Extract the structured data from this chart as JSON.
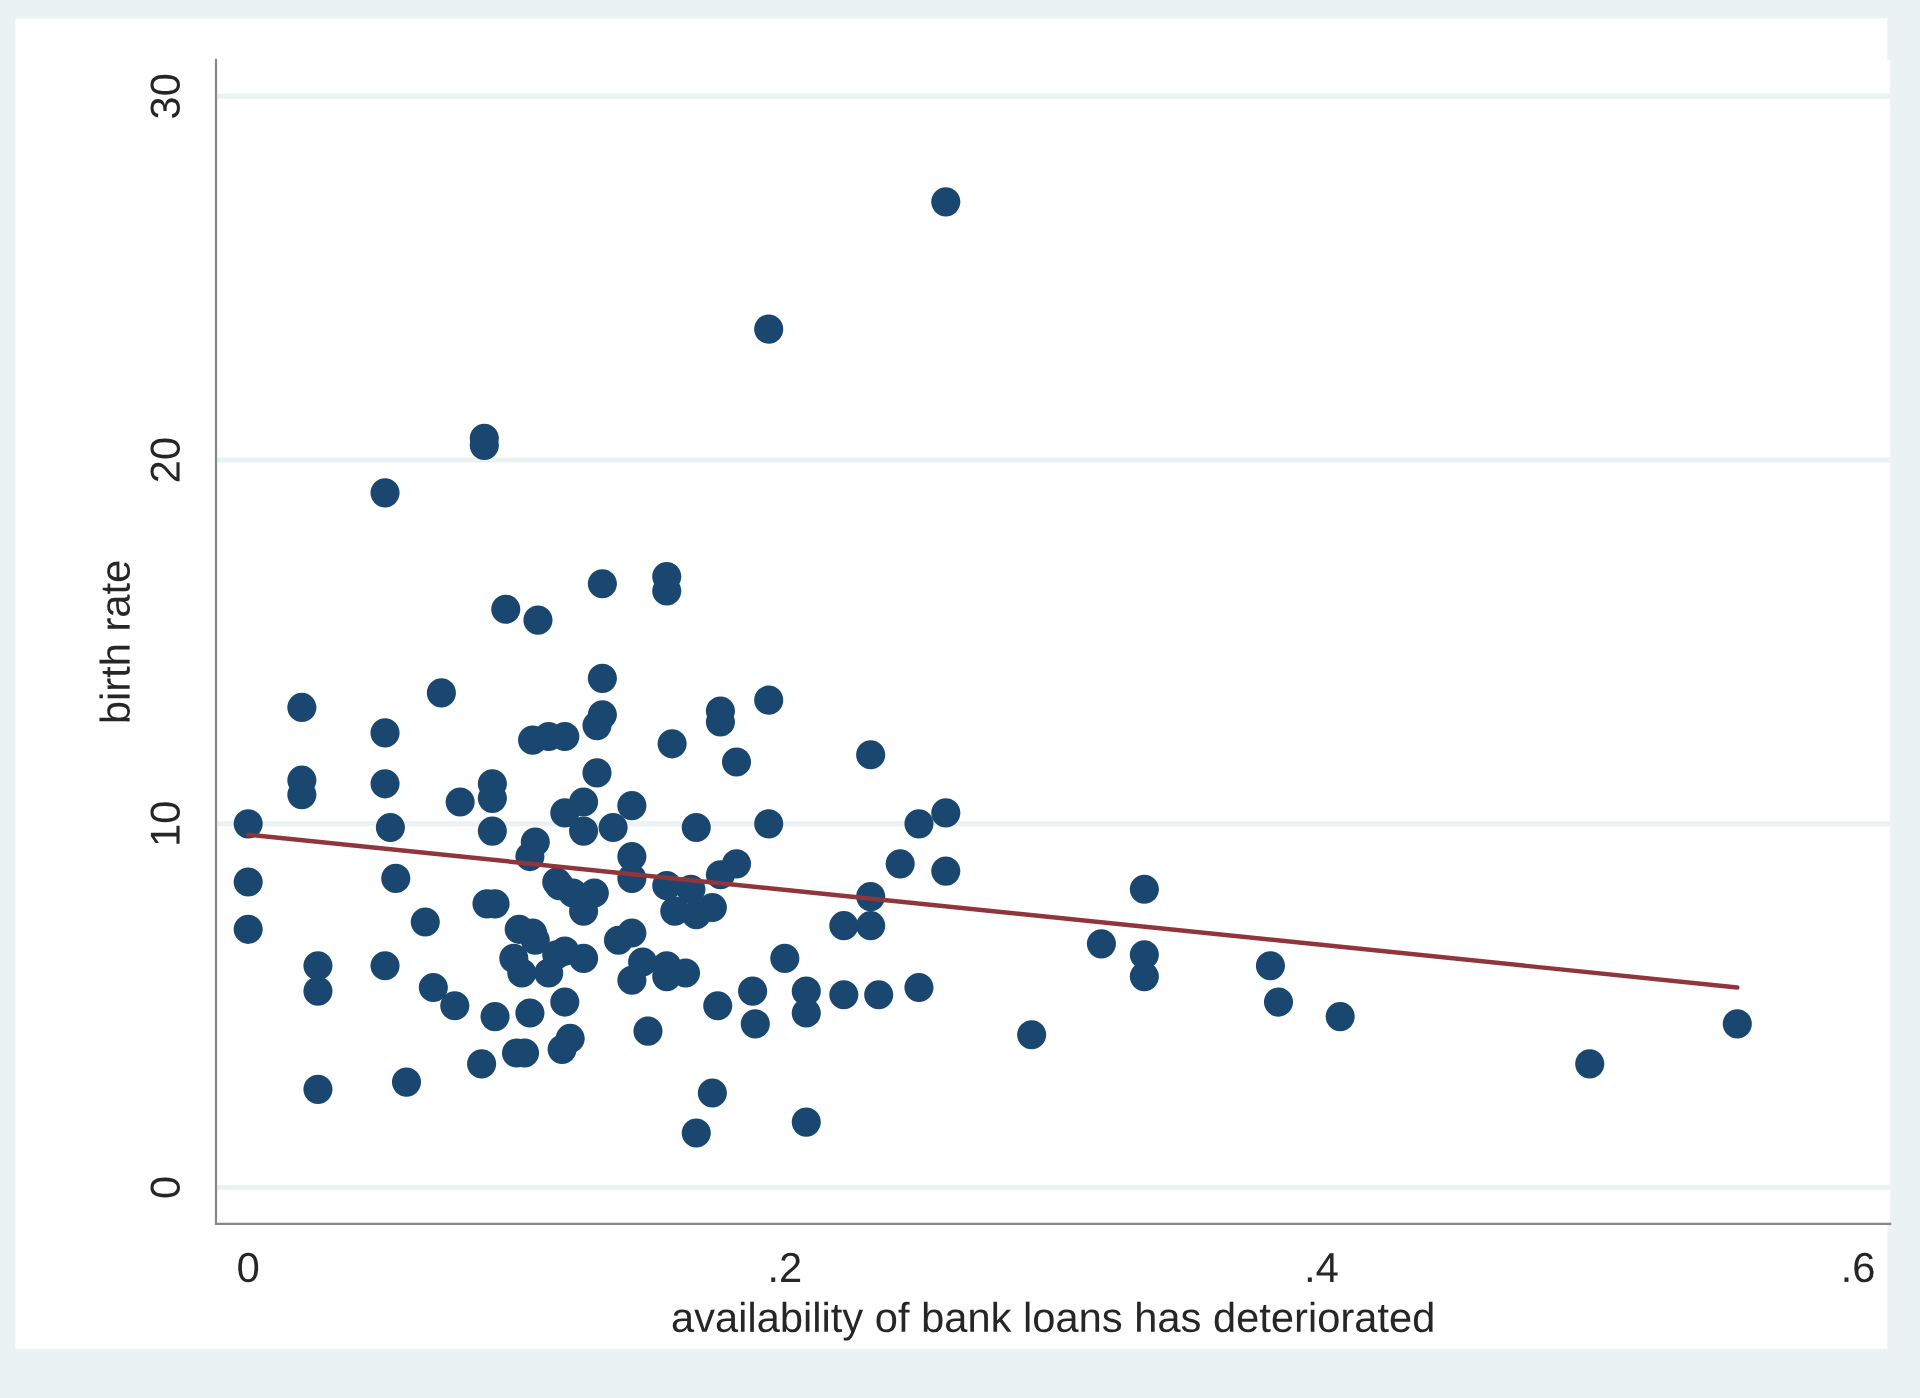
{
  "chart_data": {
    "type": "scatter",
    "xlabel": "availability of bank loans has deteriorated",
    "ylabel": "birth rate",
    "xlim": [
      -0.012,
      0.612
    ],
    "xticks": [
      {
        "value": 0,
        "label": "0"
      },
      {
        "value": 0.2,
        "label": ".2"
      },
      {
        "value": 0.4,
        "label": ".4"
      },
      {
        "value": 0.6,
        "label": ".6"
      }
    ],
    "ylim": [
      -1,
      31
    ],
    "yticks": [
      0,
      10,
      20,
      30
    ],
    "grid": "y",
    "series": [
      {
        "marker": "circle",
        "color": "#1a476f",
        "x": [
          0.096,
          0.108,
          0.02,
          0.072,
          0.051,
          0.106,
          0.112,
          0.118,
          0.02,
          0.02,
          0.051,
          0.091,
          0.091,
          0.079,
          0.118,
          0,
          0.053,
          0.091,
          0.107,
          0.105,
          0,
          0.055,
          0.115,
          0,
          0.089,
          0.092,
          0.066,
          0.101,
          0.106,
          0.107,
          0.115,
          0.026,
          0.051,
          0.099,
          0.102,
          0.112,
          0.026,
          0.069,
          0.077,
          0.092,
          0.105,
          0.118,
          0.087,
          0.1,
          0.103,
          0.117,
          0.12,
          0.026,
          0.059,
          0.088,
          0.088,
          0.051,
          0.132,
          0.156,
          0.156,
          0.194,
          0.26,
          0.132,
          0.132,
          0.13,
          0.158,
          0.176,
          0.176,
          0.194,
          0.182,
          0.232,
          0.13,
          0.125,
          0.143,
          0.125,
          0.136,
          0.167,
          0.194,
          0.25,
          0.143,
          0.182,
          0.176,
          0.243,
          0.232,
          0.143,
          0.116,
          0.121,
          0.129,
          0.125,
          0.156,
          0.165,
          0.159,
          0.167,
          0.173,
          0.222,
          0.232,
          0.118,
          0.125,
          0.138,
          0.143,
          0.147,
          0.156,
          0.163,
          0.156,
          0.143,
          0.2,
          0.149,
          0.175,
          0.188,
          0.189,
          0.208,
          0.208,
          0.222,
          0.235,
          0.25,
          0.173,
          0.167,
          0.208,
          0.26,
          0.26,
          0.334,
          0.318,
          0.334,
          0.334,
          0.381,
          0.384,
          0.407,
          0.5,
          0.555,
          0.292
        ],
        "values": [
          15.9,
          15.6,
          13.2,
          13.6,
          12.5,
          12.3,
          12.4,
          12.4,
          11.2,
          10.8,
          11.1,
          11.1,
          10.7,
          10.6,
          10.3,
          10.0,
          9.9,
          9.8,
          9.5,
          9.1,
          8.4,
          8.5,
          8.4,
          7.1,
          7.8,
          7.8,
          7.3,
          7.1,
          7.0,
          6.8,
          6.4,
          6.1,
          6.1,
          6.3,
          5.9,
          5.9,
          5.4,
          5.5,
          5.0,
          4.7,
          4.8,
          5.1,
          3.4,
          3.7,
          3.7,
          3.8,
          4.1,
          2.7,
          2.9,
          20.6,
          20.4,
          19.1,
          16.6,
          16.8,
          16.4,
          23.6,
          27.1,
          14.0,
          13.0,
          12.7,
          12.2,
          13.1,
          12.8,
          13.4,
          11.7,
          11.9,
          11.4,
          10.6,
          10.5,
          9.8,
          9.9,
          9.9,
          10.0,
          10.0,
          9.1,
          8.9,
          8.6,
          8.9,
          8.0,
          8.5,
          8.3,
          8.1,
          8.1,
          7.6,
          8.3,
          8.2,
          7.6,
          7.5,
          7.7,
          7.2,
          7.2,
          6.5,
          6.3,
          6.8,
          7.0,
          6.2,
          6.1,
          5.9,
          5.8,
          5.7,
          6.3,
          4.3,
          5.0,
          5.4,
          4.5,
          5.4,
          4.8,
          5.3,
          5.3,
          5.5,
          2.6,
          1.5,
          1.8,
          10.3,
          8.7,
          8.2,
          6.7,
          6.4,
          5.8,
          6.1,
          5.1,
          4.7,
          3.4,
          4.5,
          4.2
        ]
      },
      {
        "type": "line",
        "marker": "none",
        "color": "#90353b",
        "x": [
          0,
          0.555
        ],
        "values": [
          9.7,
          5.5
        ]
      }
    ]
  }
}
